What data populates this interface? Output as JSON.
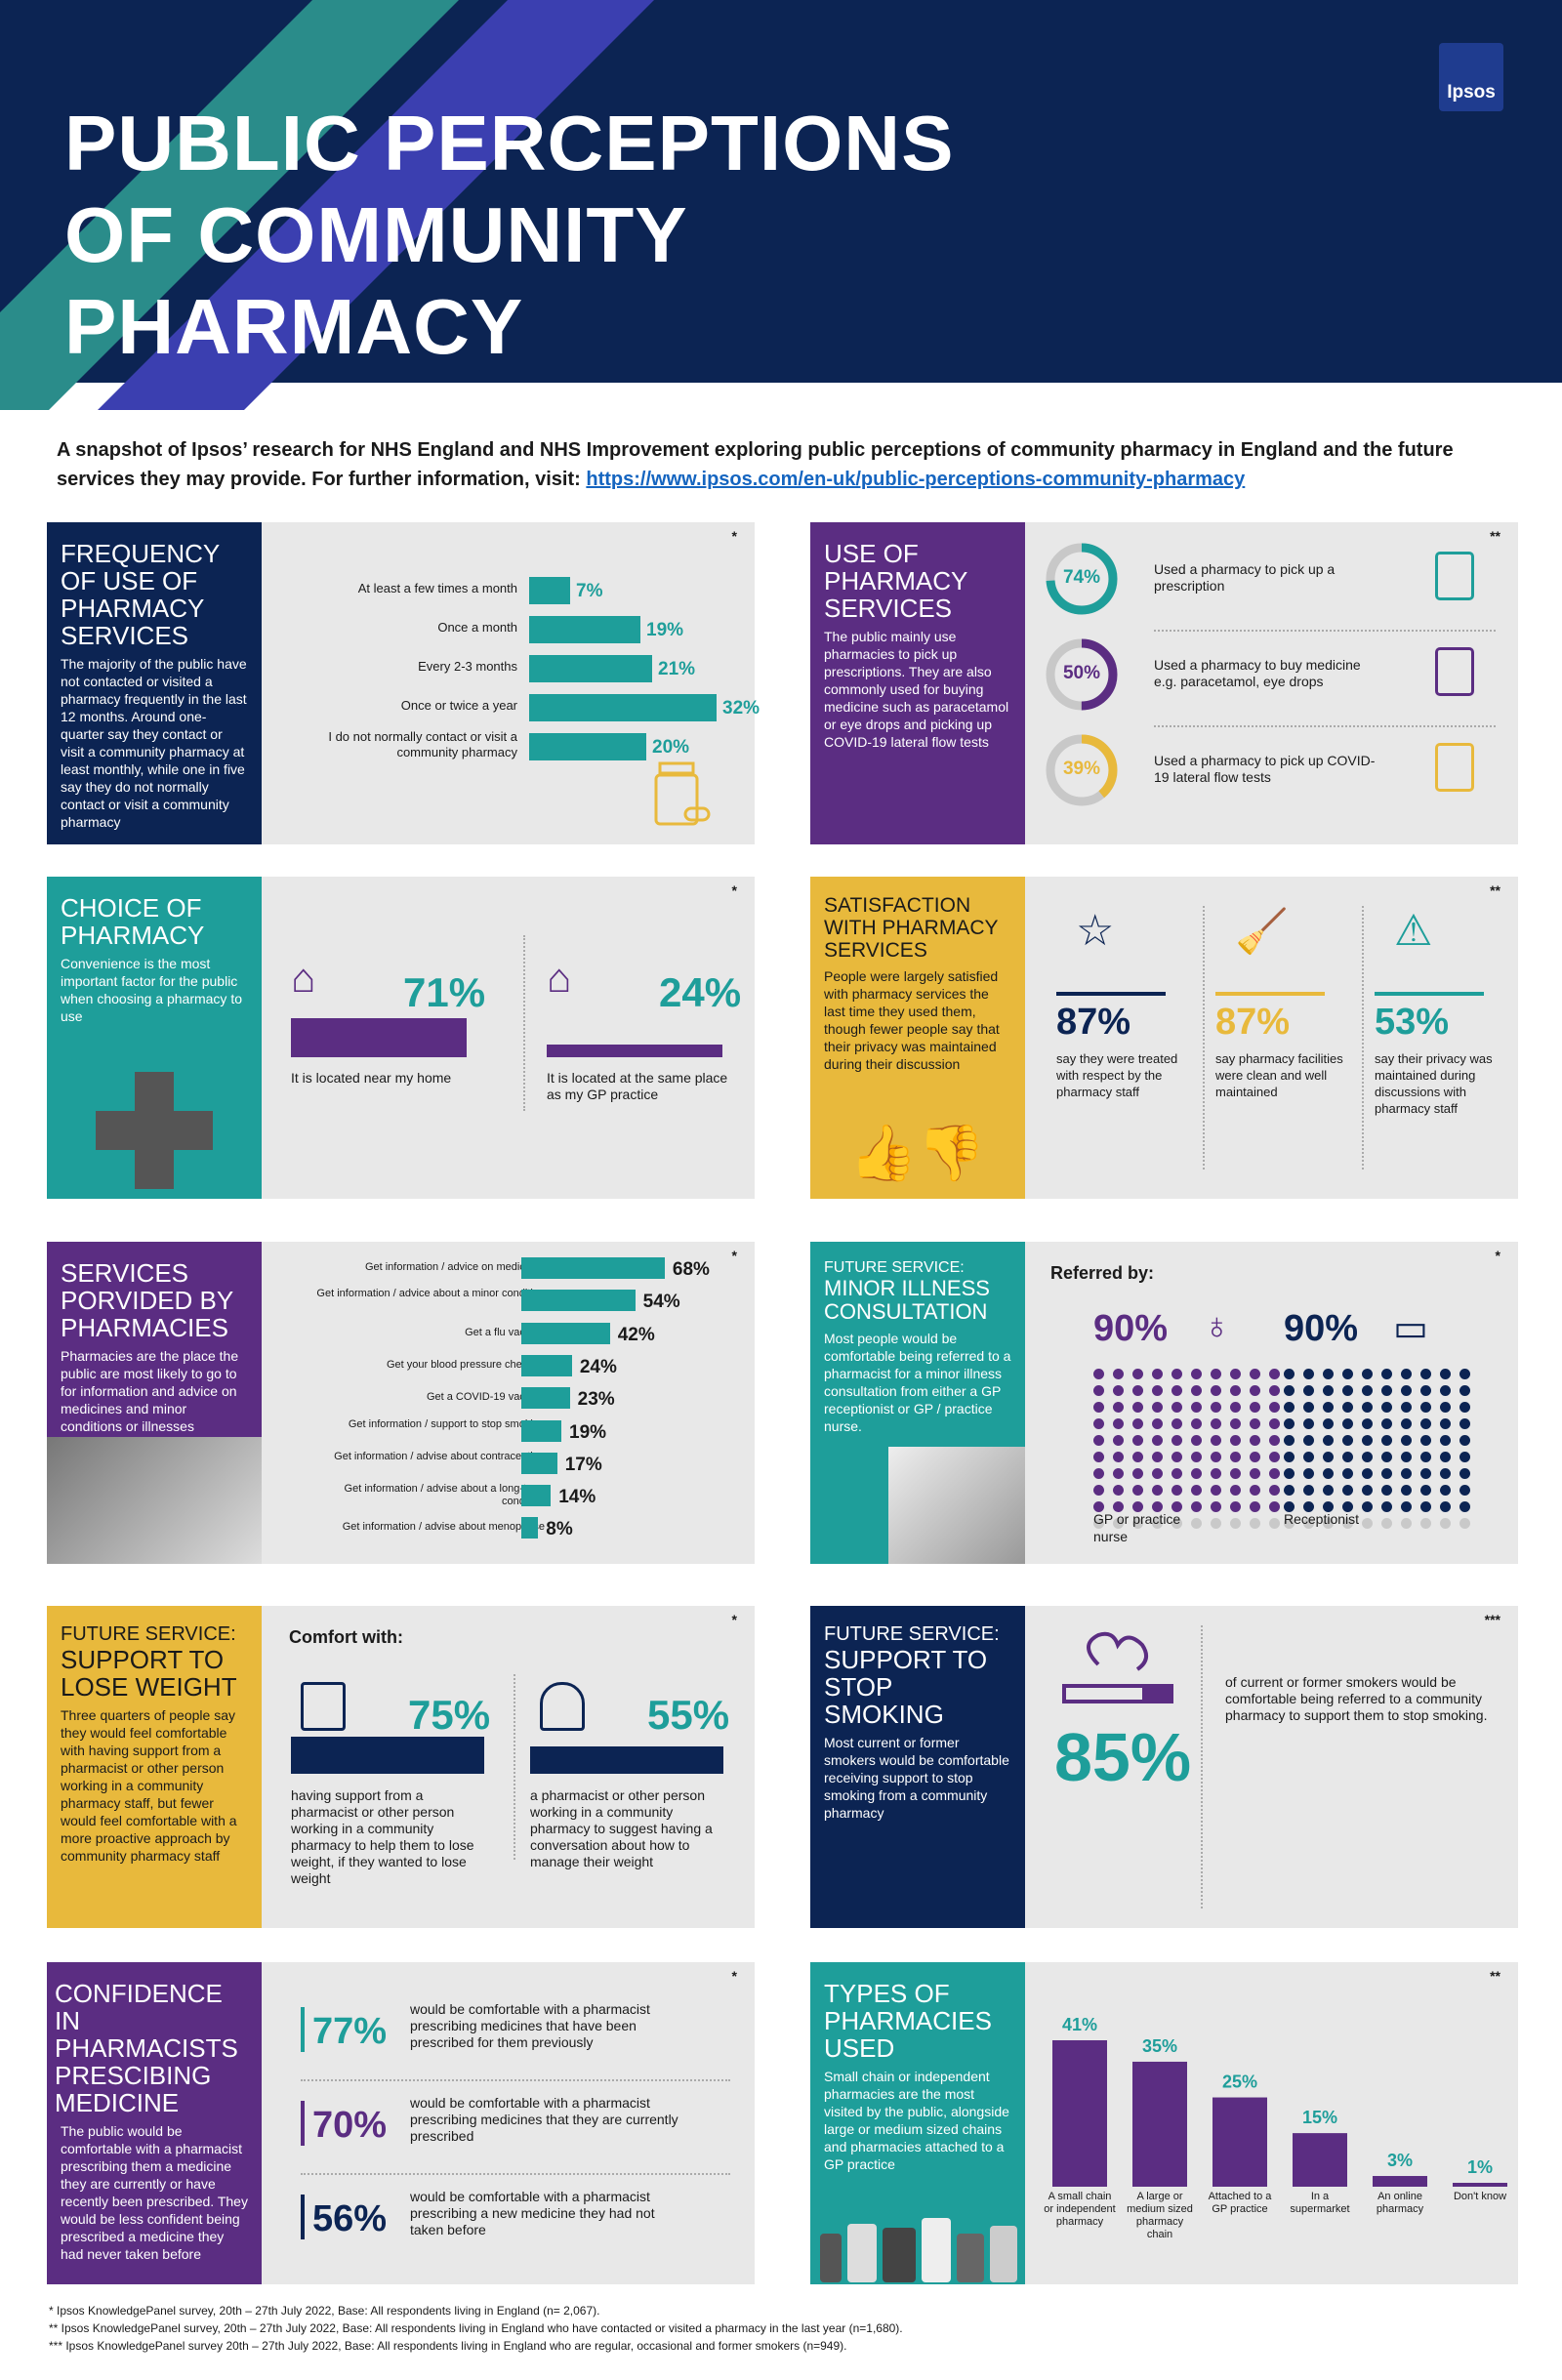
{
  "header": {
    "title_l1": "PUBLIC PERCEPTIONS",
    "title_l2": "OF COMMUNITY",
    "title_l3": "PHARMACY",
    "logo": "Ipsos"
  },
  "intro": {
    "text": "A snapshot of Ipsos’ research for NHS England and NHS Improvement exploring public perceptions of community pharmacy in England and the future services they may provide. For further information, visit: ",
    "link": "https://www.ipsos.com/en-uk/public-perceptions-community-pharmacy"
  },
  "frequency": {
    "title": "FREQUENCY OF USE OF PHARMACY SERVICES",
    "text": "The majority of the public have not contacted or visited a pharmacy frequently in the last 12 months. Around one-quarter say they contact or visit a community pharmacy at least monthly, while one in five say they do not normally contact or visit a community pharmacy",
    "ast": "*",
    "rows": [
      {
        "label": "At least a few times a month",
        "value": 7,
        "pct": "7%"
      },
      {
        "label": "Once a month",
        "value": 19,
        "pct": "19%"
      },
      {
        "label": "Every 2-3 months",
        "value": 21,
        "pct": "21%"
      },
      {
        "label": "Once or twice a year",
        "value": 32,
        "pct": "32%"
      },
      {
        "label": "I do not normally contact or visit a community pharmacy",
        "value": 20,
        "pct": "20%"
      }
    ]
  },
  "use": {
    "title": "USE OF PHARMACY SERVICES",
    "text": "The public mainly use pharmacies to pick up prescriptions. They are also commonly used for buying medicine such as paracetamol or eye drops and picking up COVID-19 lateral flow tests",
    "ast": "**",
    "items": [
      {
        "pct": "74%",
        "value": 74,
        "label": "Used a pharmacy to pick up a prescription",
        "color": "#1e9e9a"
      },
      {
        "pct": "50%",
        "value": 50,
        "label": "Used a pharmacy to buy medicine e.g. paracetamol, eye drops",
        "color": "#5b2d82"
      },
      {
        "pct": "39%",
        "value": 39,
        "label": "Used a pharmacy to pick up COVID-19 lateral flow tests",
        "color": "#e8b93c"
      }
    ]
  },
  "choice": {
    "title": "CHOICE OF PHARMACY",
    "text": "Convenience is the most important factor for the public when choosing a pharmacy to use",
    "ast": "*",
    "items": [
      {
        "pct": "71%",
        "value": 71,
        "label": "It is located near my home"
      },
      {
        "pct": "24%",
        "value": 24,
        "label": "It is located at the same place as my GP practice"
      }
    ]
  },
  "satisfaction": {
    "title": "SATISFACTION WITH PHARMACY SERVICES",
    "text": "People were largely satisfied with pharmacy services the last time they used them, though fewer people say that their privacy was maintained during their discussion",
    "ast": "**",
    "items": [
      {
        "pct": "87%",
        "label": "say they were treated with respect by the pharmacy staff",
        "color": "#0c2453"
      },
      {
        "pct": "87%",
        "label": "say pharmacy facilities were clean and well maintained",
        "color": "#e8b93c"
      },
      {
        "pct": "53%",
        "label": "say their privacy was maintained during discussions with pharmacy staff",
        "color": "#1e9e9a"
      }
    ]
  },
  "services": {
    "title": "SERVICES PORVIDED BY PHARMACIES",
    "text": "Pharmacies are the place the public are most likely to go to for information and advice on medicines and minor conditions or illnesses",
    "ast": "*",
    "rows": [
      {
        "label": "Get information / advice on medicines",
        "value": 68,
        "pct": "68%"
      },
      {
        "label": "Get information / advice about a minor condition",
        "value": 54,
        "pct": "54%"
      },
      {
        "label": "Get a flu vaccine",
        "value": 42,
        "pct": "42%"
      },
      {
        "label": "Get your blood pressure checked",
        "value": 24,
        "pct": "24%"
      },
      {
        "label": "Get a COVID-19 vaccine",
        "value": 23,
        "pct": "23%"
      },
      {
        "label": "Get information / support to stop smoking",
        "value": 19,
        "pct": "19%"
      },
      {
        "label": "Get information / advise about contraception",
        "value": 17,
        "pct": "17%"
      },
      {
        "label": "Get information / advise about a long-term condition",
        "value": 14,
        "pct": "14%"
      },
      {
        "label": "Get information / advise about menopause",
        "value": 8,
        "pct": "8%"
      }
    ]
  },
  "minor": {
    "kicker": "FUTURE SERVICE:",
    "title": "MINOR ILLNESS CONSULTATION",
    "text": "Most people would be comfortable being referred to a pharmacist for a minor illness consultation from either a GP receptionist or GP / practice nurse.",
    "ast": "*",
    "referred": "Referred by:",
    "items": [
      {
        "pct": "90%",
        "value": 90,
        "label": "GP or practice nurse",
        "color": "#5b2d82"
      },
      {
        "pct": "90%",
        "value": 90,
        "label": "Receptionist",
        "color": "#0c2453"
      }
    ]
  },
  "weight": {
    "kicker": "FUTURE SERVICE:",
    "title": "SUPPORT TO LOSE WEIGHT",
    "text": "Three quarters of people say they would feel comfortable with having support from a pharmacist or other person working in a community pharmacy staff, but fewer would feel comfortable with a more proactive approach by community pharmacy staff",
    "ast": "*",
    "comfort": "Comfort with:",
    "items": [
      {
        "pct": "75%",
        "value": 75,
        "label": "having support from a pharmacist or other person working in a community pharmacy to help them to lose weight, if they wanted to lose weight"
      },
      {
        "pct": "55%",
        "value": 55,
        "label": "a pharmacist or other person working in a community pharmacy to suggest having a conversation about how to manage their weight"
      }
    ]
  },
  "smoking": {
    "kicker": "FUTURE SERVICE:",
    "title": "SUPPORT TO STOP SMOKING",
    "text": "Most current or former smokers would be comfortable receiving support to stop smoking from a community pharmacy",
    "ast": "***",
    "pct": "85%",
    "label": "of current or former smokers would be comfortable being referred to a community pharmacy to support them to stop smoking."
  },
  "confidence": {
    "title": "CONFIDENCE IN PHARMACISTS PRESCIBING MEDICINE",
    "text": "The public would be comfortable with a pharmacist prescribing them a medicine they are currently or have recently been prescribed. They would be less confident being prescribed a medicine they had never taken before",
    "ast": "*",
    "items": [
      {
        "pct": "77%",
        "label": "would be comfortable with a pharmacist prescribing medicines that have been prescribed for them previously",
        "color": "#1e9e9a"
      },
      {
        "pct": "70%",
        "label": "would be comfortable with a pharmacist prescribing medicines that they are currently prescribed",
        "color": "#5b2d82"
      },
      {
        "pct": "56%",
        "label": "would be comfortable with a pharmacist prescribing a new medicine they had not taken before",
        "color": "#0c2453"
      }
    ]
  },
  "types": {
    "title": "TYPES OF PHARMACIES USED",
    "text": "Small chain or independent pharmacies are the most visited by the public, alongside large or medium sized chains and pharmacies attached to a GP practice",
    "ast": "**",
    "chart_data": {
      "type": "bar",
      "categories": [
        "A small chain or independent pharmacy",
        "A large or medium sized pharmacy chain",
        "Attached to a GP practice",
        "In a supermarket",
        "An online pharmacy",
        "Don't know"
      ],
      "values": [
        41,
        35,
        25,
        15,
        3,
        1
      ],
      "labels": [
        "41%",
        "35%",
        "25%",
        "15%",
        "3%",
        "1%"
      ]
    }
  },
  "footer": {
    "l1": "* Ipsos KnowledgePanel survey, 20th – 27th July 2022, Base: All respondents living in England (n= 2,067).",
    "l2": "** Ipsos KnowledgePanel survey, 20th – 27th July 2022, Base: All respondents living in England who have contacted or visited a pharmacy in the last year (n=1,680).",
    "l3": "*** Ipsos KnowledgePanel survey 20th – 27th July 2022, Base: All respondents living in England who are regular, occasional and former smokers (n=949)."
  }
}
